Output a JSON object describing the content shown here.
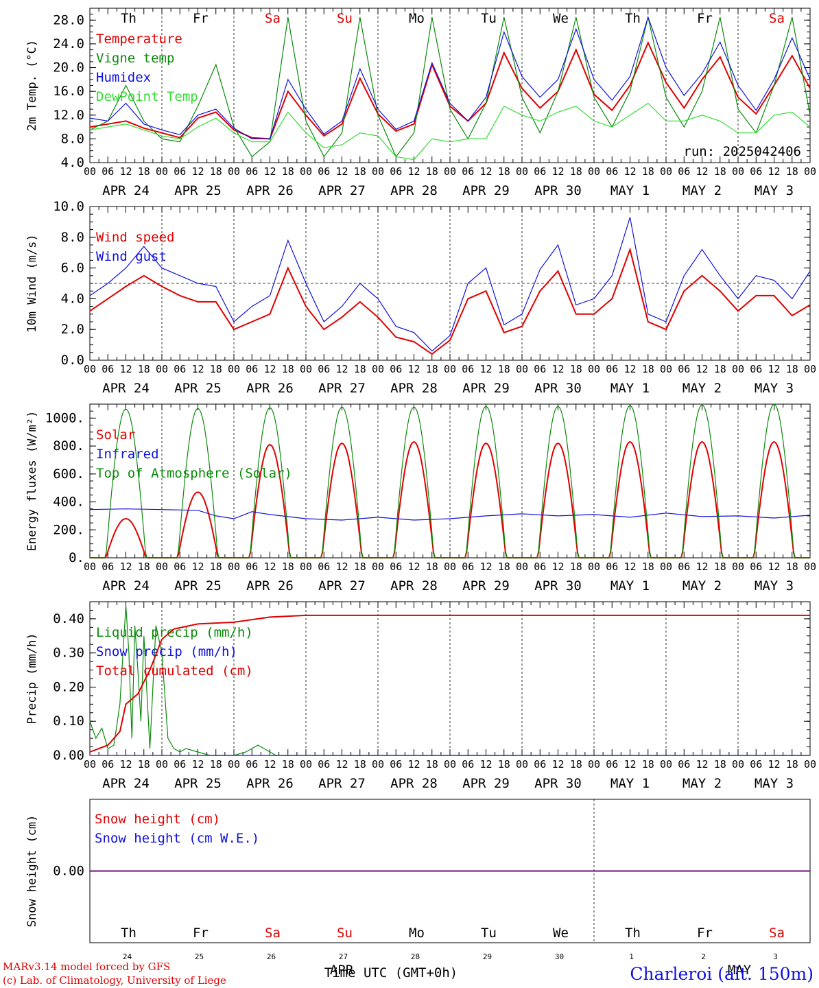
{
  "colors": {
    "red": "#e00000",
    "green": "#0a8a0a",
    "blue": "#1010e0",
    "lightgreen": "#33dd33"
  },
  "x_axis": {
    "hour_labels": [
      "00",
      "06",
      "12",
      "18"
    ],
    "date_labels": [
      "APR 24",
      "APR 25",
      "APR 26",
      "APR 27",
      "APR 28",
      "APR 29",
      "APR 30",
      "MAY  1",
      "MAY  2",
      "MAY  3"
    ],
    "weekdays": [
      "Th",
      "Fr",
      "Sa",
      "Su",
      "Mo",
      "Tu",
      "We",
      "Th",
      "Fr",
      "Sa"
    ],
    "weekday_colors": [
      "black",
      "black",
      "red",
      "red",
      "black",
      "black",
      "black",
      "black",
      "black",
      "red"
    ],
    "bottom_day_numbers": [
      "24",
      "25",
      "26",
      "27",
      "28",
      "29",
      "30",
      "1",
      "2",
      "3"
    ],
    "bottom_month_apr": "APR",
    "bottom_month_may": "MAY",
    "time_label": "Time UTC (GMT+0h)"
  },
  "footer": {
    "model": "MARv3.14 model forced by GFS",
    "lab": "(c) Lab. of Climatology, University of Liege",
    "station": "Charleroi (alt. 150m)"
  },
  "chart_data": [
    {
      "type": "line",
      "ylabel": "2m Temp. (°C)",
      "ylim": [
        4,
        30
      ],
      "yticks": [
        "4.0",
        "8.0",
        "12.0",
        "16.0",
        "20.0",
        "24.0",
        "28.0"
      ],
      "run_label": "run: 2025042406",
      "series": [
        {
          "name": "Temperature",
          "color": "red",
          "x_hours": [
            0,
            6,
            12,
            18,
            24,
            30,
            36,
            42,
            48,
            54,
            60,
            66,
            72,
            78,
            84,
            90,
            96,
            102,
            108,
            114,
            120,
            126,
            132,
            138,
            144,
            150,
            156,
            162,
            168,
            174,
            180,
            186,
            192,
            198,
            204,
            210,
            216,
            222,
            228,
            234,
            240
          ],
          "values": [
            10,
            10.5,
            11,
            9.8,
            9,
            8.2,
            11.5,
            12.5,
            9.5,
            8.2,
            8,
            16,
            12,
            8.5,
            10.5,
            18.2,
            12.2,
            9.3,
            10.5,
            20.5,
            13.5,
            11,
            14,
            22.5,
            16.5,
            13.2,
            16,
            23,
            15.5,
            12.8,
            17,
            24.2,
            17.5,
            13.2,
            18,
            21.8,
            15,
            12.2,
            17,
            22,
            16.5
          ]
        },
        {
          "name": "Vigne temp",
          "color": "green",
          "x_hours": [
            0,
            6,
            12,
            18,
            24,
            30,
            36,
            42,
            48,
            54,
            60,
            66,
            72,
            78,
            84,
            90,
            96,
            102,
            108,
            114,
            120,
            126,
            132,
            138,
            144,
            150,
            156,
            162,
            168,
            174,
            180,
            186,
            192,
            198,
            204,
            210,
            216,
            222,
            228,
            234,
            240
          ],
          "values": [
            9.5,
            11,
            17,
            11,
            8,
            7.5,
            13.5,
            20.5,
            10,
            5,
            7.5,
            28.5,
            11,
            5,
            9,
            28.5,
            12,
            5,
            9,
            28.5,
            13,
            8,
            14,
            28.5,
            15,
            9,
            16,
            28.5,
            15,
            10,
            16,
            28.5,
            15,
            10,
            16,
            28.5,
            13,
            9,
            17,
            28.5,
            12
          ]
        },
        {
          "name": "Humidex",
          "color": "blue",
          "x_hours": [
            0,
            6,
            12,
            18,
            24,
            30,
            36,
            42,
            48,
            54,
            60,
            66,
            72,
            78,
            84,
            90,
            96,
            102,
            108,
            114,
            120,
            126,
            132,
            138,
            144,
            150,
            156,
            162,
            168,
            174,
            180,
            186,
            192,
            198,
            204,
            210,
            216,
            222,
            228,
            234,
            240
          ],
          "values": [
            11.5,
            11,
            14,
            10.5,
            9.5,
            8.7,
            12,
            13,
            9.8,
            8,
            8,
            18,
            13,
            8.8,
            11,
            19.8,
            13,
            9.6,
            11,
            20.8,
            14,
            11,
            15,
            26,
            18.5,
            15,
            18,
            26.5,
            18,
            14.5,
            18.5,
            28.5,
            20,
            15.3,
            19,
            24.3,
            17,
            12.8,
            18,
            25,
            18
          ]
        },
        {
          "name": "DewPoint Temp",
          "color": "lightgreen",
          "x_hours": [
            0,
            6,
            12,
            18,
            24,
            30,
            36,
            42,
            48,
            54,
            60,
            66,
            72,
            78,
            84,
            90,
            96,
            102,
            108,
            114,
            120,
            126,
            132,
            138,
            144,
            150,
            156,
            162,
            168,
            174,
            180,
            186,
            192,
            198,
            204,
            210,
            216,
            222,
            228,
            234,
            240
          ],
          "values": [
            9.5,
            10,
            10.5,
            9.5,
            8.5,
            8,
            10,
            11.5,
            9,
            7.5,
            7.5,
            12.5,
            9,
            6.5,
            7,
            9,
            8.5,
            5,
            4.5,
            8,
            7.5,
            8,
            8,
            13.5,
            12,
            11,
            12.5,
            13.5,
            11,
            10,
            12,
            14,
            11,
            11,
            12,
            11,
            9,
            9,
            12,
            12.5,
            10
          ]
        }
      ]
    },
    {
      "type": "line",
      "ylabel": "10m Wind (m/s)",
      "ylim": [
        0,
        10
      ],
      "yticks": [
        "0.0",
        "2.0",
        "4.0",
        "6.0",
        "8.0",
        "10.0"
      ],
      "reference_line": 5,
      "series": [
        {
          "name": "Wind speed",
          "color": "red",
          "x_hours": [
            0,
            6,
            12,
            18,
            24,
            30,
            36,
            42,
            48,
            54,
            60,
            66,
            72,
            78,
            84,
            90,
            96,
            102,
            108,
            114,
            120,
            126,
            132,
            138,
            144,
            150,
            156,
            162,
            168,
            174,
            180,
            186,
            192,
            198,
            204,
            210,
            216,
            222,
            228,
            234,
            240
          ],
          "values": [
            3.2,
            4,
            4.8,
            5.5,
            4.8,
            4.2,
            3.8,
            3.8,
            2,
            2.5,
            3,
            6,
            3.5,
            2,
            2.8,
            3.8,
            2.8,
            1.5,
            1.2,
            0.4,
            1.3,
            4,
            4.5,
            1.8,
            2.2,
            4.5,
            5.8,
            3,
            3,
            4,
            7.2,
            2.5,
            2,
            4.5,
            5.5,
            4.5,
            3.2,
            4.2,
            4.2,
            2.9,
            3.6
          ]
        },
        {
          "name": "Wind gust",
          "color": "blue",
          "x_hours": [
            0,
            6,
            12,
            18,
            24,
            30,
            36,
            42,
            48,
            54,
            60,
            66,
            72,
            78,
            84,
            90,
            96,
            102,
            108,
            114,
            120,
            126,
            132,
            138,
            144,
            150,
            156,
            162,
            168,
            174,
            180,
            186,
            192,
            198,
            204,
            210,
            216,
            222,
            228,
            234,
            240
          ],
          "values": [
            4.2,
            5,
            6,
            7.4,
            6,
            5.5,
            5,
            4.8,
            2.5,
            3.5,
            4.2,
            7.8,
            5,
            2.5,
            3.5,
            5,
            4,
            2.2,
            1.8,
            0.6,
            1.6,
            5,
            6,
            2.3,
            3,
            5.9,
            7.5,
            3.6,
            4,
            5.5,
            9.3,
            3,
            2.5,
            5.5,
            7.2,
            5.5,
            4,
            5.5,
            5.2,
            4,
            5.8
          ]
        }
      ]
    },
    {
      "type": "line",
      "ylabel": "Energy fluxes (W/m²)",
      "ylim": [
        0,
        1100
      ],
      "yticks": [
        "0.",
        "200.",
        "400.",
        "600.",
        "800.",
        "1000."
      ],
      "series": [
        {
          "name": "Solar",
          "color": "red",
          "daily_peaks": [
            280,
            470,
            810,
            820,
            830,
            820,
            820,
            830,
            830,
            830
          ]
        },
        {
          "name": "Infrared",
          "color": "blue",
          "x_hours": [
            0,
            12,
            24,
            36,
            42,
            48,
            54,
            60,
            72,
            84,
            96,
            108,
            120,
            132,
            144,
            156,
            168,
            180,
            192,
            204,
            216,
            228,
            240
          ],
          "values": [
            345,
            350,
            345,
            340,
            300,
            280,
            330,
            310,
            280,
            270,
            290,
            270,
            280,
            300,
            315,
            300,
            310,
            290,
            320,
            295,
            300,
            285,
            305
          ]
        },
        {
          "name": "Top of Atmosphere (Solar)",
          "color": "green",
          "daily_peaks": [
            1065,
            1070,
            1075,
            1080,
            1080,
            1085,
            1085,
            1090,
            1095,
            1100
          ]
        }
      ]
    },
    {
      "type": "line",
      "ylabel": "Precip (mm/h)",
      "ylim": [
        0,
        0.45
      ],
      "yticks": [
        "0.00",
        "0.10",
        "0.20",
        "0.30",
        "0.40"
      ],
      "series": [
        {
          "name": "Liquid precip (mm/h)",
          "color": "green",
          "x_hours": [
            0,
            2,
            4,
            6,
            8,
            10,
            12,
            13,
            14,
            15,
            16,
            17,
            18,
            20,
            22,
            24,
            26,
            28,
            30,
            32,
            36,
            40,
            44,
            48,
            52,
            56,
            58,
            60,
            62,
            64,
            240
          ],
          "values": [
            0.1,
            0.05,
            0.08,
            0.02,
            0.03,
            0.15,
            0.44,
            0.3,
            0.05,
            0.38,
            0.25,
            0.1,
            0.35,
            0.02,
            0.38,
            0.3,
            0.05,
            0.02,
            0.01,
            0.02,
            0.01,
            0,
            0,
            0,
            0.01,
            0.03,
            0.02,
            0.01,
            0,
            0,
            0
          ]
        },
        {
          "name": "Snow precip (mm/h)",
          "color": "blue",
          "x_hours": [
            0,
            240
          ],
          "values": [
            0,
            0
          ]
        },
        {
          "name": "Total cumulated (cm)",
          "color": "red",
          "x_hours": [
            0,
            6,
            10,
            12,
            16,
            20,
            24,
            28,
            36,
            48,
            60,
            72,
            100,
            160,
            240
          ],
          "values": [
            0.01,
            0.03,
            0.07,
            0.15,
            0.18,
            0.25,
            0.34,
            0.37,
            0.385,
            0.39,
            0.405,
            0.41,
            0.41,
            0.41,
            0.41
          ]
        }
      ]
    },
    {
      "type": "line",
      "ylabel": "Snow height (cm)",
      "ylim": [
        -1,
        1
      ],
      "yticks": [
        "0.00"
      ],
      "series": [
        {
          "name": "Snow height (cm)",
          "color": "red",
          "x_hours": [
            0,
            240
          ],
          "values": [
            0,
            0
          ]
        },
        {
          "name": "Snow height (cm W.E.)",
          "color": "blue",
          "x_hours": [
            0,
            240
          ],
          "values": [
            0,
            0
          ]
        }
      ]
    }
  ]
}
